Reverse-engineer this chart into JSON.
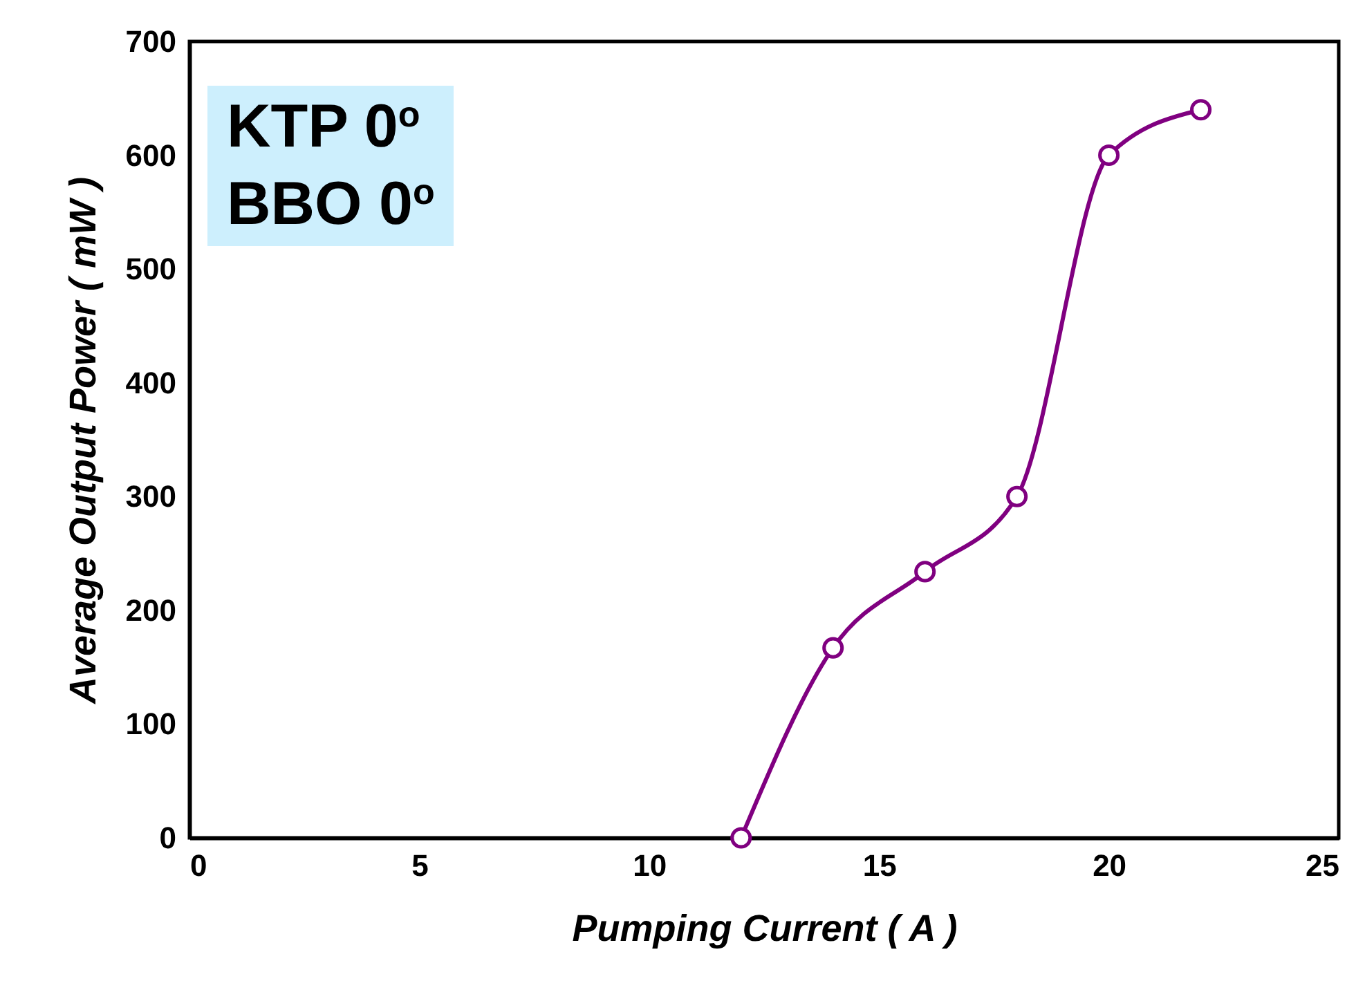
{
  "chart_data": {
    "type": "line",
    "xlabel": "Pumping Current ( A )",
    "ylabel": "Average Output Power ( mW )",
    "annotations": [
      "KTP 0$^{o}$",
      "BBO 0$^{o}$"
    ],
    "series": [
      {
        "color": "#800080",
        "x": [
          12,
          14,
          16,
          18,
          20,
          22
        ],
        "values": [
          0,
          167,
          234,
          300,
          600,
          640
        ]
      }
    ],
    "xlim": [
      0,
      25
    ],
    "xticks": [
      0,
      5,
      10,
      15,
      20,
      25
    ],
    "ylim": [
      0,
      700
    ],
    "yticks": [
      0,
      100,
      200,
      300,
      400,
      500,
      600,
      700
    ],
    "marker": "circle",
    "line_style": "solid"
  }
}
